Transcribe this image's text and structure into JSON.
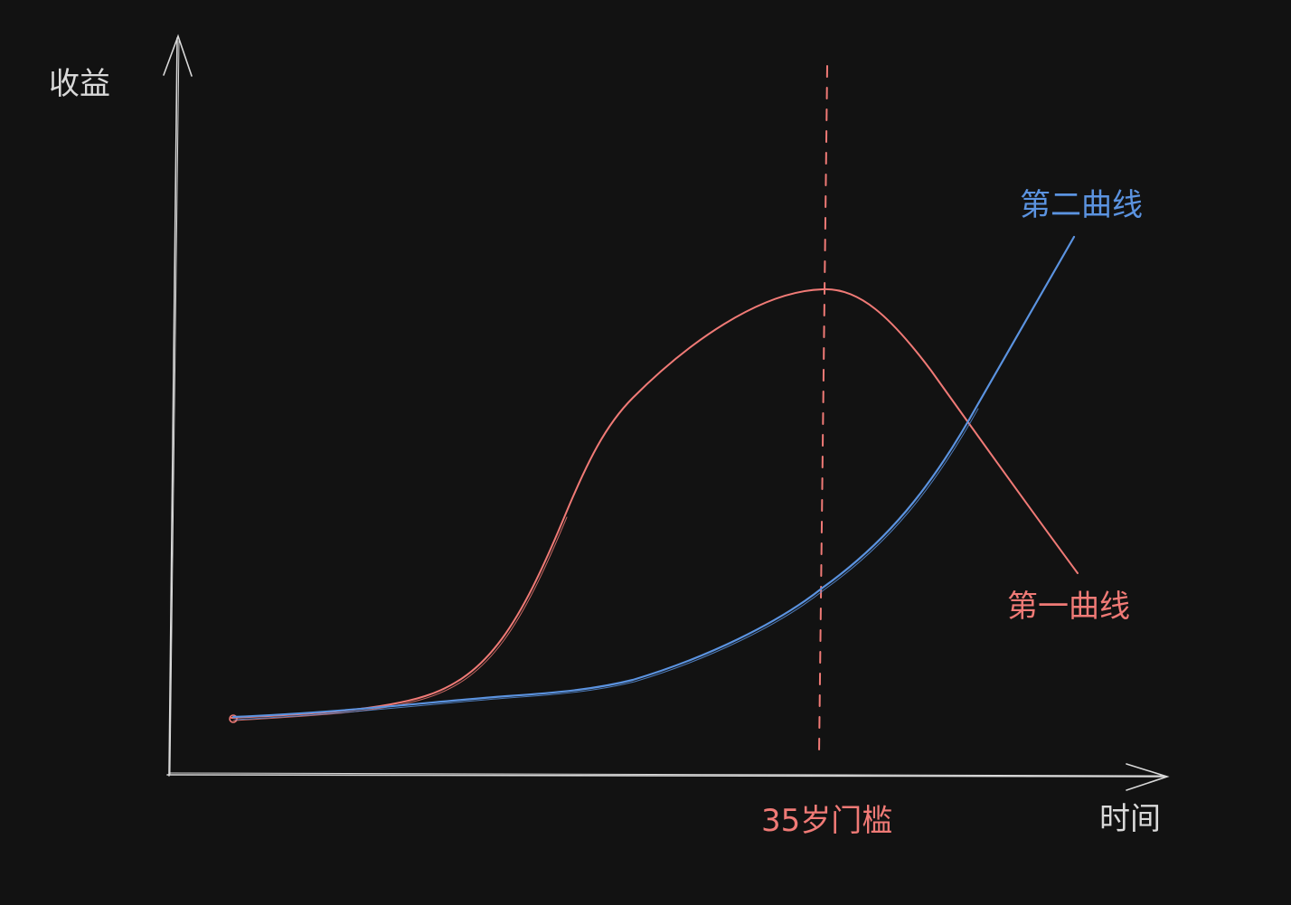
{
  "labels": {
    "y_axis": "收益",
    "x_axis": "时间",
    "curve_one": "第一曲线",
    "curve_two": "第二曲线",
    "threshold": "35岁门槛"
  },
  "colors": {
    "background": "#121212",
    "axis": "#d9d9d9",
    "curve_one": "#f07a76",
    "curve_two": "#5b93e0",
    "threshold": "#f07a76"
  }
}
